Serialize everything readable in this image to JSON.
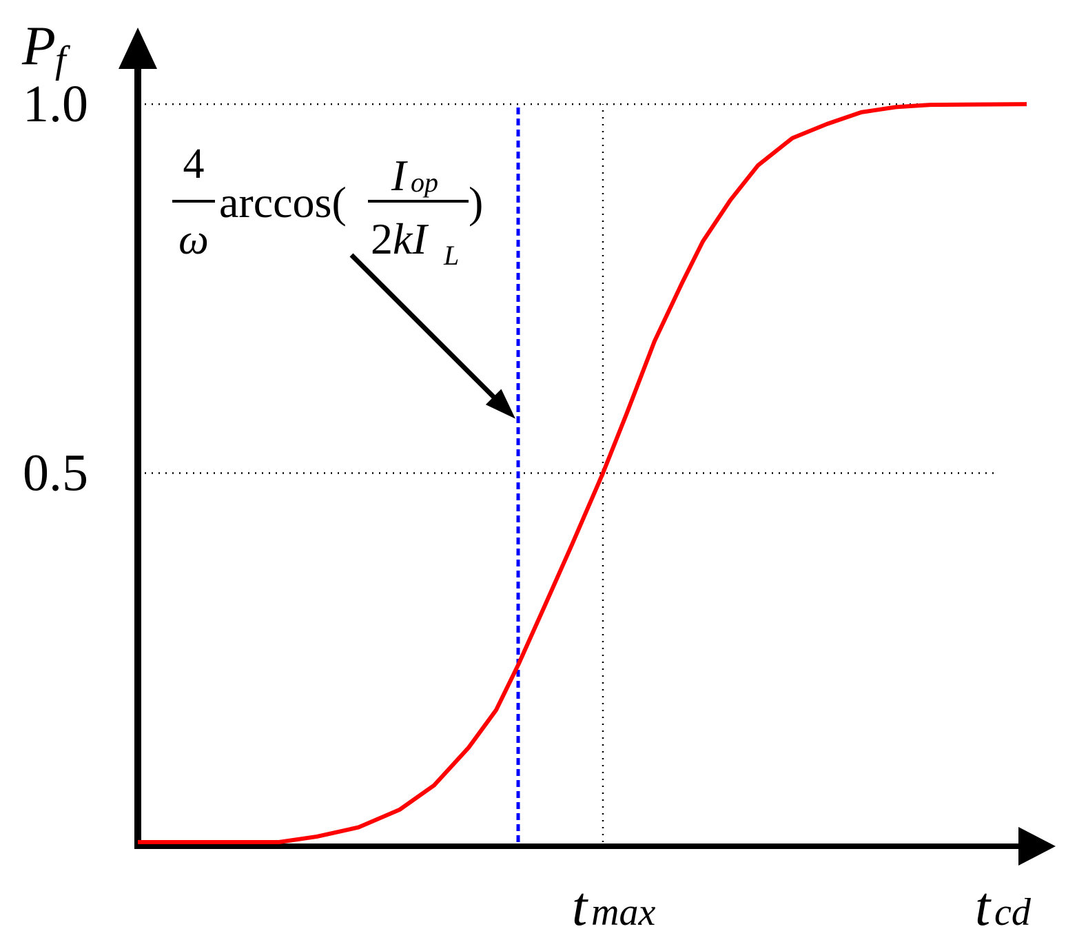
{
  "chart_data": {
    "type": "line",
    "y_label": {
      "text": "P",
      "sub": "f"
    },
    "x_label": {
      "text": "t",
      "sub": "cd"
    },
    "xlim": [
      0,
      13.3
    ],
    "ylim": [
      0,
      1.1
    ],
    "yticks": [
      0.5,
      {
        "value": 1,
        "label": "1.0"
      }
    ],
    "grid": true,
    "series": [
      {
        "color": "#ff0000",
        "x": [
          0,
          2.05,
          2.6,
          3.2,
          3.8,
          4.3,
          4.8,
          5.2,
          5.52,
          5.9,
          6.3,
          6.75,
          7.1,
          7.5,
          7.9,
          8.2,
          8.6,
          9.0,
          9.5,
          10.0,
          10.5,
          11.0,
          11.5,
          12.9
        ],
        "values": [
          0,
          0,
          0.0075,
          0.02,
          0.044,
          0.077,
          0.128,
          0.179,
          0.24,
          0.319,
          0.403,
          0.5,
          0.582,
          0.679,
          0.758,
          0.814,
          0.87,
          0.917,
          0.954,
          0.973,
          0.989,
          0.996,
          0.999,
          1.0
        ]
      }
    ],
    "markers": [
      {
        "x": 6.75,
        "color": "#000000",
        "style": "dotted",
        "label": {
          "text": "t",
          "sub": "max"
        }
      },
      {
        "x": 5.52,
        "color": "#0000ff",
        "style": "dashed",
        "annotation": {
          "arrow_y": 0.57,
          "numerator": "4",
          "denominator": "ω",
          "function": "arccos(",
          "inner_numerator": {
            "text": "I",
            "sub": "op"
          },
          "inner_denominator": {
            "lead": "2",
            "text": "kI",
            "sub": "L"
          },
          "close": ")"
        }
      }
    ]
  }
}
